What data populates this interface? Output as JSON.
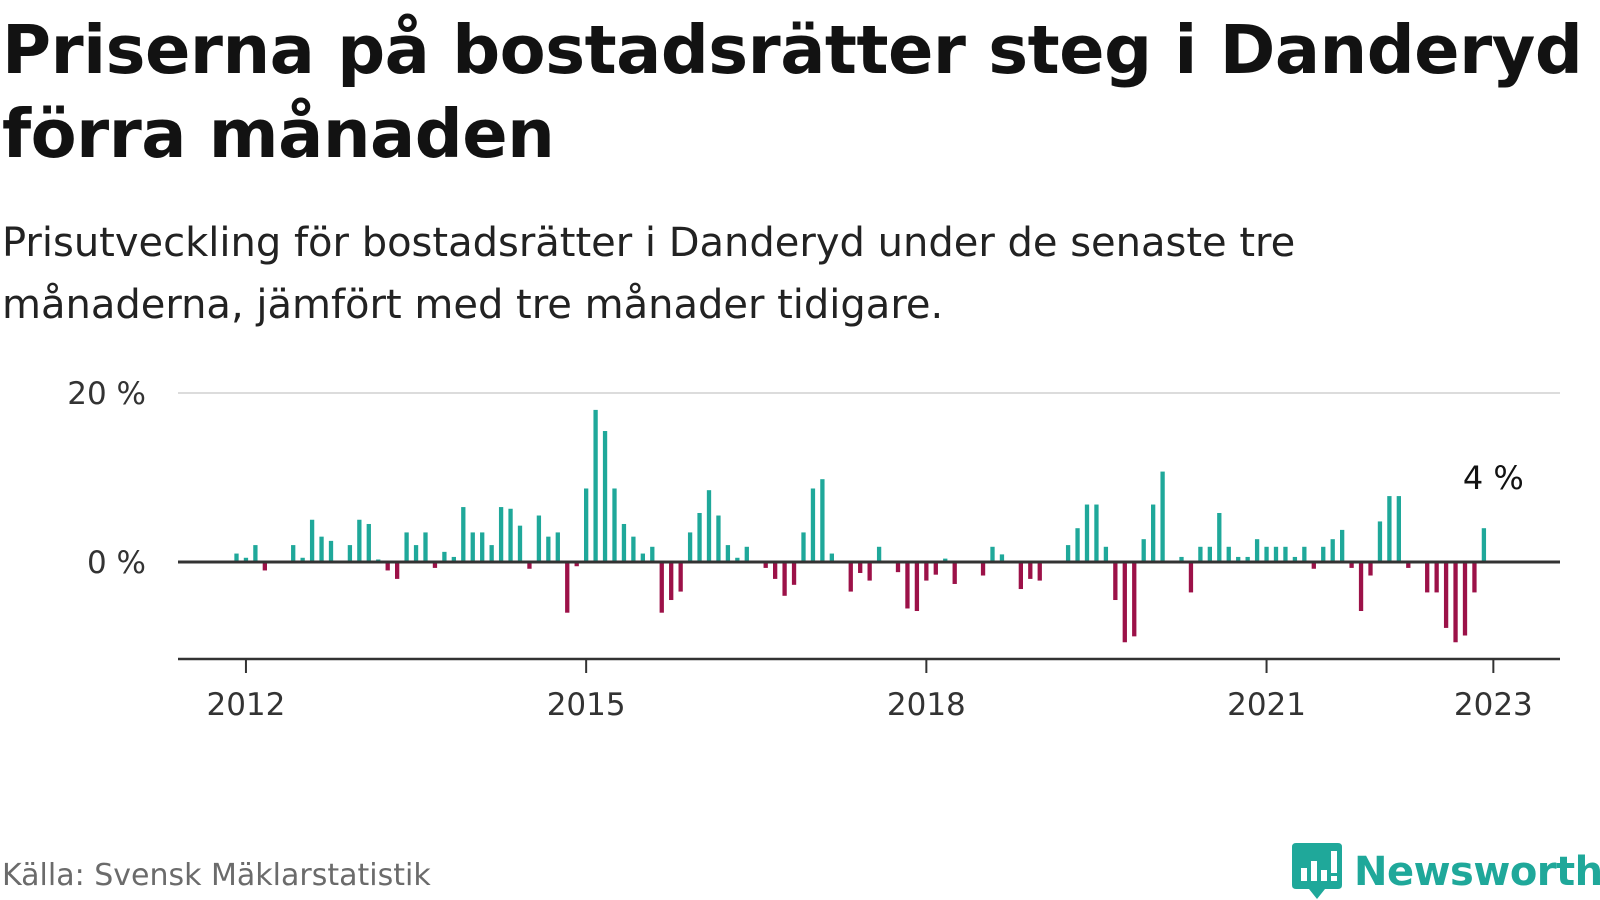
{
  "title": "Priserna på bostadsrätter steg i Danderyd förra månaden",
  "subtitle": "Prisutveckling för bostadsrätter i Danderyd under de senaste tre månaderna, jämfört med tre månader tidigare.",
  "source": "Källa: Svensk Mäklarstatistik",
  "brand": "Newsworthy",
  "colors": {
    "positive": "#1fa89a",
    "negative": "#9c1148",
    "brand": "#1fa89a",
    "gridline": "#dcdcdc",
    "axis": "#333333"
  },
  "chart_data": {
    "type": "bar",
    "title": "Priserna på bostadsrätter steg i Danderyd förra månaden",
    "xlabel": "",
    "ylabel": "",
    "start": "2011-12",
    "frequency": "monthly",
    "ylim": [
      -10.5,
      20
    ],
    "yticks": [
      0,
      20
    ],
    "ytick_labels": [
      "0 %",
      "20 %"
    ],
    "xticks": [
      "2012-01",
      "2015-01",
      "2018-01",
      "2021-01",
      "2023-01"
    ],
    "xtick_labels": [
      "2012",
      "2015",
      "2018",
      "2021",
      "2023"
    ],
    "grid": true,
    "annotation": {
      "label": "4 %",
      "month": "2023-01",
      "value": 4
    },
    "values": [
      1,
      0.5,
      2,
      -1,
      0,
      0,
      2,
      0.5,
      5,
      3,
      2.5,
      0,
      2,
      5,
      4.5,
      0.3,
      -1,
      -2,
      3.5,
      2,
      3.5,
      -0.7,
      1.2,
      0.6,
      6.5,
      3.5,
      3.5,
      2,
      6.5,
      6.3,
      4.3,
      -0.8,
      5.5,
      3,
      3.5,
      -6,
      -0.5,
      8.7,
      18,
      15.5,
      8.7,
      4.5,
      3,
      1,
      1.8,
      -6,
      -4.5,
      -3.5,
      3.5,
      5.8,
      8.5,
      5.5,
      2,
      0.5,
      1.8,
      0,
      -0.7,
      -2,
      -4,
      -2.7,
      3.5,
      8.7,
      9.8,
      1,
      0,
      -3.5,
      -1.3,
      -2.2,
      1.8,
      0,
      -1.2,
      -5.5,
      -5.8,
      -2.2,
      -1.5,
      0.4,
      -2.6,
      0,
      0,
      -1.6,
      1.8,
      0.9,
      0,
      -3.2,
      -2,
      -2.2,
      0,
      0,
      2,
      4,
      6.8,
      6.8,
      1.8,
      -4.5,
      -9.5,
      -8.8,
      2.7,
      6.8,
      10.7,
      0,
      0.6,
      -3.6,
      1.8,
      1.8,
      5.8,
      1.8,
      0.6,
      0.6,
      2.7,
      1.8,
      1.8,
      1.8,
      0.6,
      1.8,
      -0.8,
      1.8,
      2.7,
      3.8,
      -0.7,
      -5.8,
      -1.6,
      4.8,
      7.8,
      7.8,
      -0.7,
      0,
      -3.6,
      -3.6,
      -7.8,
      -9.5,
      -8.7,
      -3.6,
      4
    ]
  }
}
